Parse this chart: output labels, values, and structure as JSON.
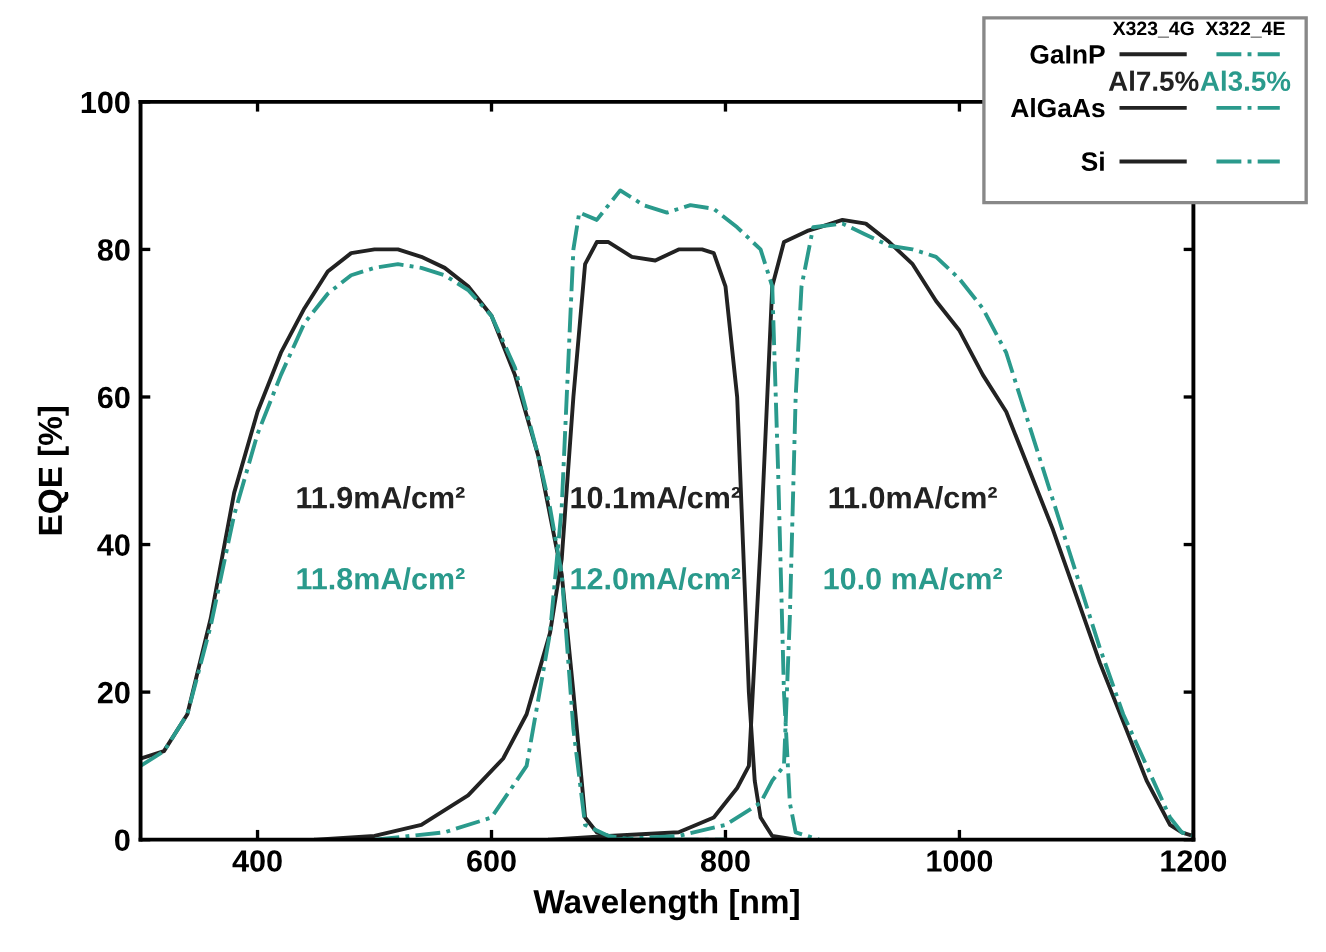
{
  "chart_data": {
    "type": "line",
    "xlabel": "Wavelength [nm]",
    "ylabel": "EQE [%]",
    "xlim": [
      300,
      1200
    ],
    "ylim": [
      0,
      100
    ],
    "xticks": [
      400,
      600,
      800,
      1000,
      1200
    ],
    "yticks": [
      0,
      20,
      40,
      60,
      80,
      100
    ],
    "grid": false,
    "legend": "top right",
    "marker": "none",
    "series": [
      {
        "name": "GaInP",
        "color": "#222222",
        "line_style": "solid",
        "x": [
          300,
          320,
          340,
          360,
          380,
          400,
          420,
          440,
          460,
          480,
          500,
          520,
          540,
          560,
          580,
          600,
          620,
          640,
          650,
          660,
          670,
          680,
          690,
          700,
          720,
          800
        ],
        "values": [
          11,
          12,
          17,
          30,
          47,
          58,
          66,
          72,
          77,
          79.5,
          80,
          80,
          79,
          77.5,
          75,
          71,
          63,
          52,
          44,
          36,
          20,
          3,
          1,
          0.5,
          0,
          0
        ]
      },
      {
        "name": "AlGaAs",
        "color": "#222222",
        "line_style": "solid",
        "x": [
          450,
          500,
          540,
          580,
          610,
          630,
          650,
          660,
          670,
          680,
          690,
          700,
          720,
          740,
          760,
          780,
          790,
          800,
          810,
          815,
          820,
          825,
          830,
          840,
          860
        ],
        "values": [
          0,
          0.5,
          2,
          6,
          11,
          17,
          28,
          38,
          60,
          78,
          81,
          81,
          79,
          78.5,
          80,
          80,
          79.5,
          75,
          60,
          40,
          20,
          8,
          3,
          0.5,
          0
        ]
      },
      {
        "name": "Si",
        "color": "#222222",
        "line_style": "solid",
        "x": [
          650,
          700,
          760,
          790,
          810,
          820,
          830,
          840,
          850,
          870,
          880,
          900,
          920,
          940,
          960,
          980,
          1000,
          1020,
          1040,
          1060,
          1080,
          1100,
          1120,
          1140,
          1160,
          1180,
          1190,
          1200
        ],
        "values": [
          0,
          0.5,
          1,
          3,
          7,
          10,
          40,
          75,
          81,
          82.5,
          83,
          84,
          83.5,
          81,
          78,
          73,
          69,
          63,
          58,
          50,
          42,
          33,
          24,
          16,
          8,
          2,
          1,
          0.5
        ]
      },
      {
        "color": "#2a9a8c",
        "line_style": "dashdot",
        "x": [
          300,
          320,
          340,
          360,
          380,
          400,
          420,
          440,
          460,
          480,
          500,
          520,
          540,
          560,
          580,
          600,
          620,
          640,
          650,
          660,
          670,
          680,
          700,
          720,
          800
        ],
        "values": [
          10,
          12,
          17,
          29,
          44,
          55,
          63,
          70,
          74,
          76.5,
          77.5,
          78,
          77.5,
          76.5,
          74.5,
          71,
          64,
          52,
          45,
          36,
          15,
          2,
          0.5,
          0,
          0
        ]
      },
      {
        "color": "#2a9a8c",
        "line_style": "dashdot",
        "x": [
          500,
          560,
          600,
          630,
          650,
          660,
          670,
          675,
          690,
          710,
          730,
          750,
          770,
          790,
          810,
          830,
          840,
          845,
          850,
          855,
          860,
          880
        ],
        "values": [
          0,
          1,
          3,
          10,
          28,
          45,
          80,
          85,
          84,
          88,
          86,
          85,
          86,
          85.5,
          83,
          80,
          75,
          50,
          20,
          5,
          1,
          0
        ]
      },
      {
        "color": "#2a9a8c",
        "line_style": "dashdot",
        "x": [
          700,
          760,
          800,
          830,
          840,
          850,
          855,
          860,
          865,
          875,
          900,
          920,
          940,
          960,
          980,
          1000,
          1020,
          1040,
          1060,
          1080,
          1100,
          1120,
          1140,
          1160,
          1180,
          1190,
          1200
        ],
        "values": [
          0,
          0.5,
          2,
          5,
          8,
          10,
          30,
          60,
          75,
          83,
          83.5,
          82,
          80.5,
          80,
          79,
          76,
          72,
          66,
          56,
          46,
          36,
          26,
          17,
          10,
          3,
          1,
          0.5
        ]
      }
    ],
    "annotations": [
      "11.9mA/cm²",
      "11.8mA/cm²",
      "10.1mA/cm²",
      "12.0mA/cm²",
      "11.0mA/cm²",
      "10.0 mA/cm²",
      "X323_4G",
      "X322_4E",
      "Al7.5%",
      "Al3.5%"
    ]
  }
}
